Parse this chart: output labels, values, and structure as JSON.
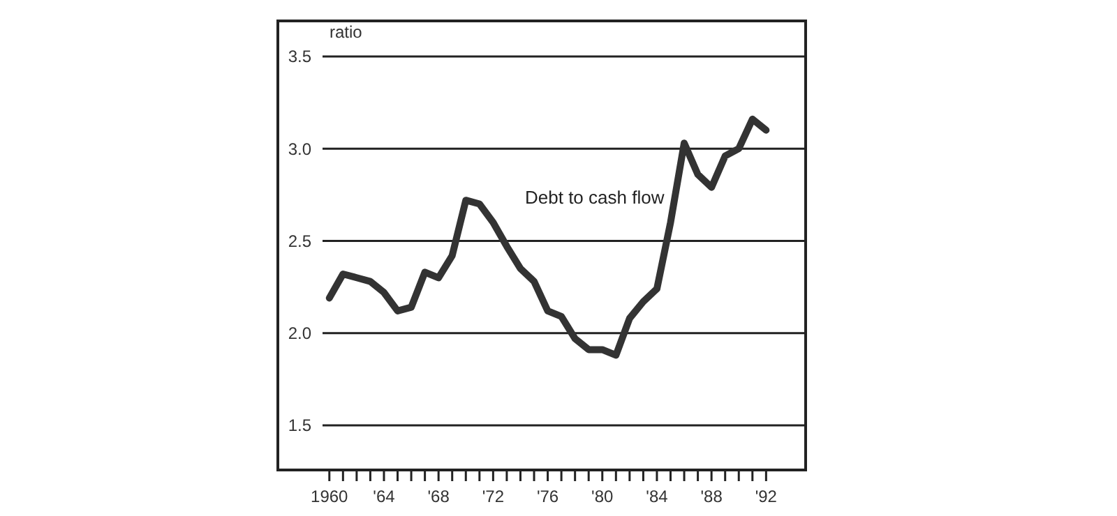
{
  "chart_data": {
    "type": "line",
    "ylabel": "ratio",
    "x": [
      1960,
      1961,
      1962,
      1963,
      1964,
      1965,
      1966,
      1967,
      1968,
      1969,
      1970,
      1971,
      1972,
      1973,
      1974,
      1975,
      1976,
      1977,
      1978,
      1979,
      1980,
      1981,
      1982,
      1983,
      1984,
      1985,
      1986,
      1987,
      1988,
      1989,
      1990,
      1991,
      1992
    ],
    "series": [
      {
        "name": "Debt to cash flow",
        "color": "#333333",
        "values": [
          2.19,
          2.32,
          2.3,
          2.28,
          2.22,
          2.12,
          2.14,
          2.33,
          2.3,
          2.42,
          2.72,
          2.7,
          2.6,
          2.47,
          2.35,
          2.28,
          2.12,
          2.09,
          1.97,
          1.91,
          1.91,
          1.88,
          2.08,
          2.17,
          2.24,
          2.6,
          3.03,
          2.86,
          2.79,
          2.96,
          3.0,
          3.16,
          3.1
        ]
      }
    ],
    "xlim": [
      1959.5,
      1995
    ],
    "xticks": [
      {
        "value": 1960,
        "label": "1960"
      },
      {
        "value": 1961,
        "label": null
      },
      {
        "value": 1962,
        "label": null
      },
      {
        "value": 1963,
        "label": null
      },
      {
        "value": 1964,
        "label": "'64"
      },
      {
        "value": 1965,
        "label": null
      },
      {
        "value": 1966,
        "label": null
      },
      {
        "value": 1967,
        "label": null
      },
      {
        "value": 1968,
        "label": "'68"
      },
      {
        "value": 1969,
        "label": null
      },
      {
        "value": 1970,
        "label": null
      },
      {
        "value": 1971,
        "label": null
      },
      {
        "value": 1972,
        "label": "'72"
      },
      {
        "value": 1973,
        "label": null
      },
      {
        "value": 1974,
        "label": null
      },
      {
        "value": 1975,
        "label": null
      },
      {
        "value": 1976,
        "label": "'76"
      },
      {
        "value": 1977,
        "label": null
      },
      {
        "value": 1978,
        "label": null
      },
      {
        "value": 1979,
        "label": null
      },
      {
        "value": 1980,
        "label": "'80"
      },
      {
        "value": 1981,
        "label": null
      },
      {
        "value": 1982,
        "label": null
      },
      {
        "value": 1983,
        "label": null
      },
      {
        "value": 1984,
        "label": "'84"
      },
      {
        "value": 1985,
        "label": null
      },
      {
        "value": 1986,
        "label": null
      },
      {
        "value": 1987,
        "label": null
      },
      {
        "value": 1988,
        "label": "'88"
      },
      {
        "value": 1989,
        "label": null
      },
      {
        "value": 1990,
        "label": null
      },
      {
        "value": 1991,
        "label": null
      },
      {
        "value": 1992,
        "label": "'92"
      }
    ],
    "ylim": [
      1.25,
      3.7
    ],
    "yticks": [
      {
        "value": 1.5,
        "label": "1.5"
      },
      {
        "value": 2.0,
        "label": "2.0"
      },
      {
        "value": 2.5,
        "label": "2.5"
      },
      {
        "value": 3.0,
        "label": "3.0"
      },
      {
        "value": 3.5,
        "label": "3.5"
      }
    ],
    "grid": "y",
    "marker": "none",
    "line_style": "solid"
  }
}
